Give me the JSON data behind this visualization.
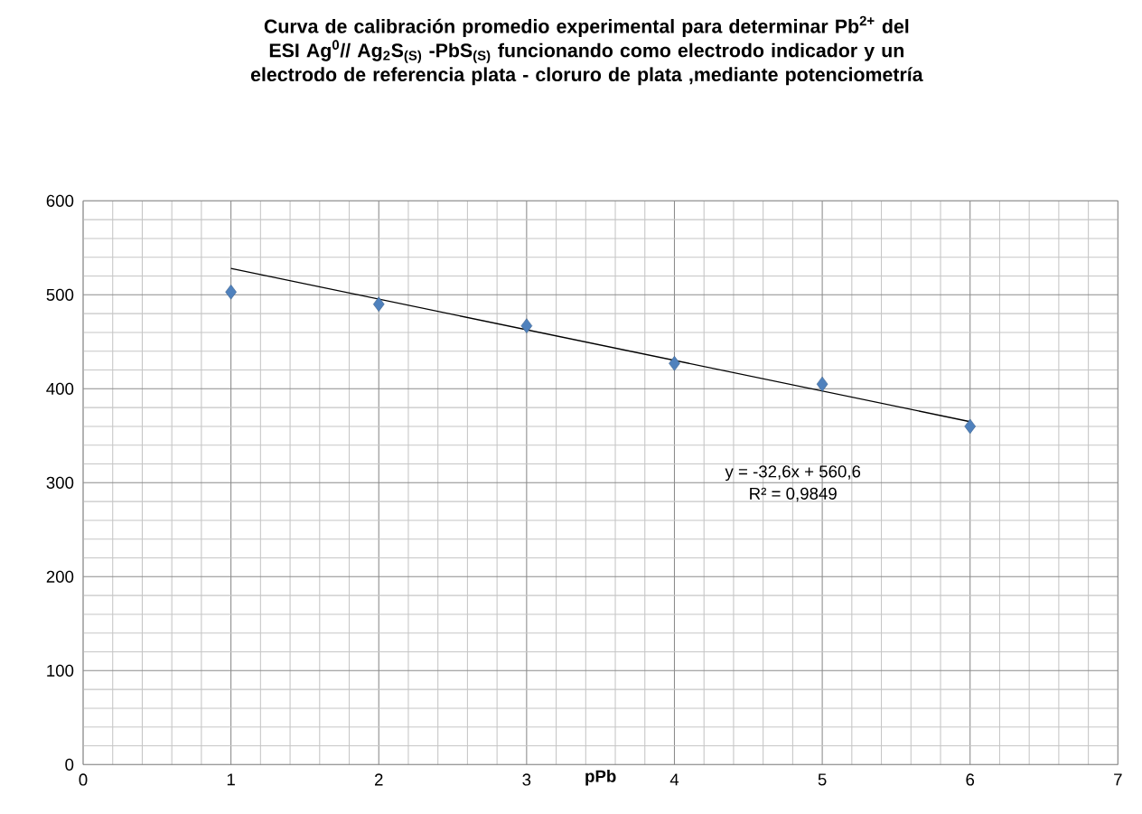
{
  "chart_data": {
    "type": "scatter",
    "title": "Curva de calibración promedio experimental para determinar Pb$^{2+}$ del ESI Ag$^{0}$// Ag$_{2}$S$_{(S)}$ -PbS$_{(S)}$  funcionando como electrodo indicador y un electrodo de referencia plata - cloruro de plata ,mediante potenciometría",
    "xlabel": "pPb",
    "x": [
      1,
      2,
      3,
      4,
      5,
      6
    ],
    "series": [
      {
        "color": "#4f81bd",
        "values": [
          503,
          490,
          467,
          427,
          405,
          360
        ]
      },
      {
        "type": "line",
        "color": "#000000",
        "marker": "none",
        "x": [
          1,
          6
        ],
        "values": [
          528,
          365
        ]
      }
    ],
    "annotations": [
      "y = -32,6x + 560,6",
      "R² = 0,9849"
    ],
    "xlim": [
      0,
      7
    ],
    "xticks": [
      0,
      1,
      2,
      3,
      4,
      5,
      6,
      7
    ],
    "ylim": [
      0,
      600
    ],
    "yticks": [
      0,
      100,
      200,
      300,
      400,
      500,
      600
    ],
    "grid": true,
    "marker": "diamond"
  }
}
